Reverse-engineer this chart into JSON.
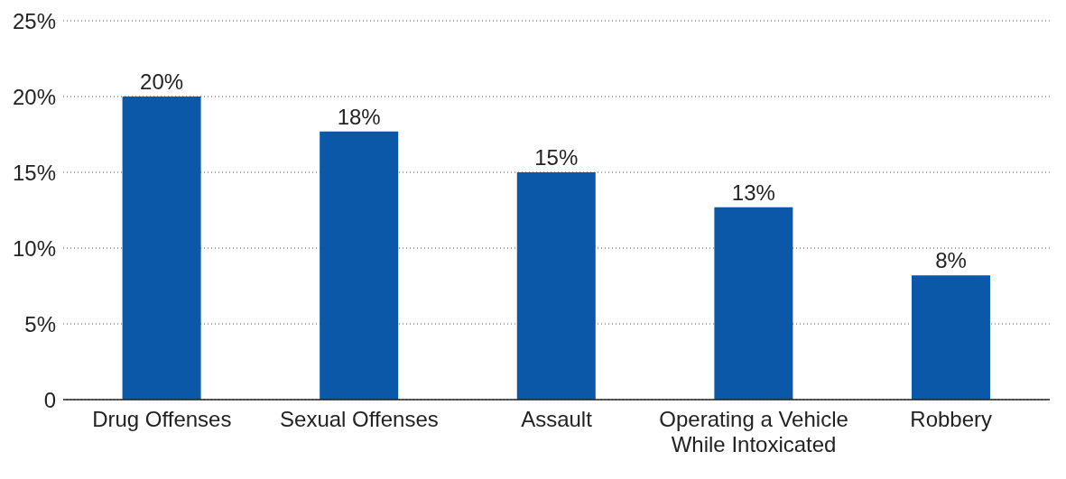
{
  "chart_data": {
    "type": "bar",
    "categories": [
      "Drug Offenses",
      "Sexual Offenses",
      "Assault",
      "Operating a Vehicle While Intoxicated",
      "Robbery"
    ],
    "values": [
      20,
      17.7,
      15,
      12.7,
      8.2
    ],
    "value_labels": [
      "20%",
      "18%",
      "15%",
      "13%",
      "8%"
    ],
    "color": "#0b58a8",
    "ylim": [
      0,
      25
    ],
    "yticks": [
      {
        "value": 0,
        "label": "0"
      },
      {
        "value": 5,
        "label": "5%"
      },
      {
        "value": 10,
        "label": "10%"
      },
      {
        "value": 15,
        "label": "15%"
      },
      {
        "value": 20,
        "label": "20%"
      },
      {
        "value": 25,
        "label": "25%"
      }
    ],
    "grid": "y"
  }
}
